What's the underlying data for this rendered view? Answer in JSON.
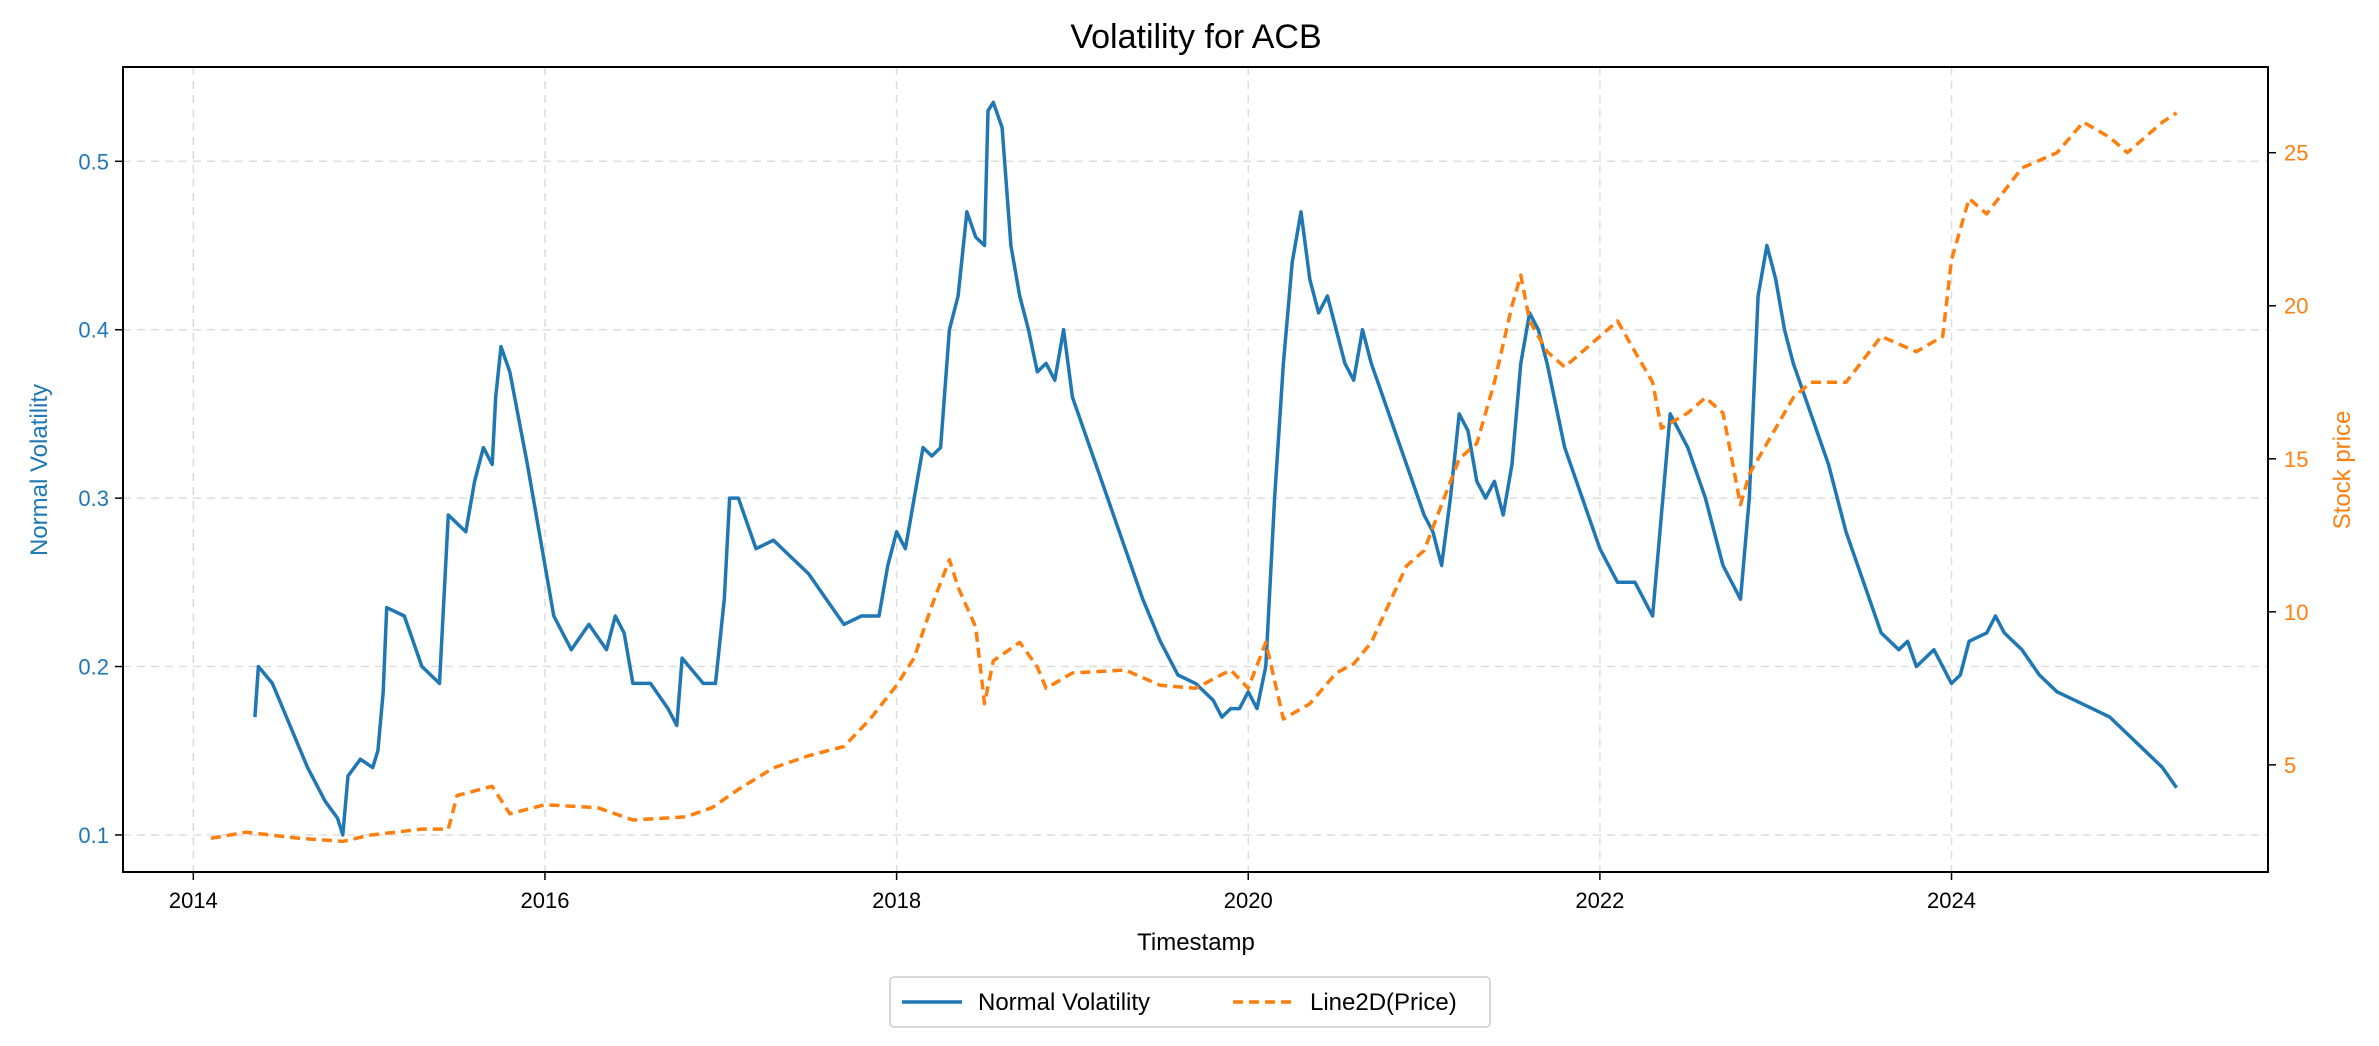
{
  "chart_data": {
    "type": "line",
    "title": "Volatility for ACB",
    "xlabel": "Timestamp",
    "ylabel_left": "Normal Volatility",
    "ylabel_right": "Stock price",
    "x_ticks": [
      "2014",
      "2016",
      "2018",
      "2020",
      "2022",
      "2024"
    ],
    "y_left_ticks": [
      "0.1",
      "0.2",
      "0.3",
      "0.4",
      "0.5"
    ],
    "y_right_ticks": [
      "5",
      "10",
      "15",
      "20",
      "25"
    ],
    "xlim": [
      2013.6,
      2025.8
    ],
    "ylim_left": [
      0.078,
      0.556
    ],
    "ylim_right": [
      1.5,
      27.8
    ],
    "grid": true,
    "legend_position": "bottom-center",
    "colors": {
      "volatility": "#1f77b4",
      "price": "#ff7f0e"
    },
    "series": [
      {
        "name": "Normal Volatility",
        "axis": "left",
        "style": "solid",
        "points": [
          [
            2014.35,
            0.17
          ],
          [
            2014.37,
            0.2
          ],
          [
            2014.45,
            0.19
          ],
          [
            2014.55,
            0.165
          ],
          [
            2014.65,
            0.14
          ],
          [
            2014.75,
            0.12
          ],
          [
            2014.82,
            0.11
          ],
          [
            2014.85,
            0.1
          ],
          [
            2014.88,
            0.135
          ],
          [
            2014.95,
            0.145
          ],
          [
            2015.02,
            0.14
          ],
          [
            2015.05,
            0.15
          ],
          [
            2015.08,
            0.185
          ],
          [
            2015.1,
            0.235
          ],
          [
            2015.2,
            0.23
          ],
          [
            2015.3,
            0.2
          ],
          [
            2015.4,
            0.19
          ],
          [
            2015.45,
            0.29
          ],
          [
            2015.55,
            0.28
          ],
          [
            2015.6,
            0.31
          ],
          [
            2015.65,
            0.33
          ],
          [
            2015.7,
            0.32
          ],
          [
            2015.72,
            0.36
          ],
          [
            2015.75,
            0.39
          ],
          [
            2015.8,
            0.375
          ],
          [
            2015.9,
            0.32
          ],
          [
            2016.0,
            0.26
          ],
          [
            2016.05,
            0.23
          ],
          [
            2016.15,
            0.21
          ],
          [
            2016.25,
            0.225
          ],
          [
            2016.35,
            0.21
          ],
          [
            2016.4,
            0.23
          ],
          [
            2016.45,
            0.22
          ],
          [
            2016.5,
            0.19
          ],
          [
            2016.6,
            0.19
          ],
          [
            2016.7,
            0.175
          ],
          [
            2016.75,
            0.165
          ],
          [
            2016.78,
            0.205
          ],
          [
            2016.9,
            0.19
          ],
          [
            2016.97,
            0.19
          ],
          [
            2017.02,
            0.24
          ],
          [
            2017.05,
            0.3
          ],
          [
            2017.1,
            0.3
          ],
          [
            2017.2,
            0.27
          ],
          [
            2017.3,
            0.275
          ],
          [
            2017.4,
            0.265
          ],
          [
            2017.5,
            0.255
          ],
          [
            2017.6,
            0.24
          ],
          [
            2017.7,
            0.225
          ],
          [
            2017.8,
            0.23
          ],
          [
            2017.9,
            0.23
          ],
          [
            2017.95,
            0.26
          ],
          [
            2018.0,
            0.28
          ],
          [
            2018.05,
            0.27
          ],
          [
            2018.1,
            0.3
          ],
          [
            2018.15,
            0.33
          ],
          [
            2018.2,
            0.325
          ],
          [
            2018.25,
            0.33
          ],
          [
            2018.3,
            0.4
          ],
          [
            2018.35,
            0.42
          ],
          [
            2018.4,
            0.47
          ],
          [
            2018.45,
            0.455
          ],
          [
            2018.5,
            0.45
          ],
          [
            2018.52,
            0.53
          ],
          [
            2018.55,
            0.535
          ],
          [
            2018.6,
            0.52
          ],
          [
            2018.65,
            0.45
          ],
          [
            2018.7,
            0.42
          ],
          [
            2018.75,
            0.4
          ],
          [
            2018.8,
            0.375
          ],
          [
            2018.85,
            0.38
          ],
          [
            2018.9,
            0.37
          ],
          [
            2018.95,
            0.4
          ],
          [
            2019.0,
            0.36
          ],
          [
            2019.1,
            0.33
          ],
          [
            2019.2,
            0.3
          ],
          [
            2019.3,
            0.27
          ],
          [
            2019.4,
            0.24
          ],
          [
            2019.5,
            0.215
          ],
          [
            2019.6,
            0.195
          ],
          [
            2019.7,
            0.19
          ],
          [
            2019.8,
            0.18
          ],
          [
            2019.85,
            0.17
          ],
          [
            2019.9,
            0.175
          ],
          [
            2019.95,
            0.175
          ],
          [
            2020.0,
            0.185
          ],
          [
            2020.05,
            0.175
          ],
          [
            2020.1,
            0.2
          ],
          [
            2020.15,
            0.3
          ],
          [
            2020.2,
            0.38
          ],
          [
            2020.25,
            0.44
          ],
          [
            2020.3,
            0.47
          ],
          [
            2020.35,
            0.43
          ],
          [
            2020.4,
            0.41
          ],
          [
            2020.45,
            0.42
          ],
          [
            2020.5,
            0.4
          ],
          [
            2020.55,
            0.38
          ],
          [
            2020.6,
            0.37
          ],
          [
            2020.65,
            0.4
          ],
          [
            2020.7,
            0.38
          ],
          [
            2020.8,
            0.35
          ],
          [
            2020.9,
            0.32
          ],
          [
            2021.0,
            0.29
          ],
          [
            2021.05,
            0.28
          ],
          [
            2021.1,
            0.26
          ],
          [
            2021.15,
            0.3
          ],
          [
            2021.2,
            0.35
          ],
          [
            2021.25,
            0.34
          ],
          [
            2021.3,
            0.31
          ],
          [
            2021.35,
            0.3
          ],
          [
            2021.4,
            0.31
          ],
          [
            2021.45,
            0.29
          ],
          [
            2021.5,
            0.32
          ],
          [
            2021.55,
            0.38
          ],
          [
            2021.6,
            0.41
          ],
          [
            2021.65,
            0.4
          ],
          [
            2021.7,
            0.38
          ],
          [
            2021.8,
            0.33
          ],
          [
            2021.9,
            0.3
          ],
          [
            2022.0,
            0.27
          ],
          [
            2022.1,
            0.25
          ],
          [
            2022.2,
            0.25
          ],
          [
            2022.3,
            0.23
          ],
          [
            2022.35,
            0.29
          ],
          [
            2022.4,
            0.35
          ],
          [
            2022.5,
            0.33
          ],
          [
            2022.6,
            0.3
          ],
          [
            2022.7,
            0.26
          ],
          [
            2022.8,
            0.24
          ],
          [
            2022.85,
            0.3
          ],
          [
            2022.9,
            0.42
          ],
          [
            2022.95,
            0.45
          ],
          [
            2023.0,
            0.43
          ],
          [
            2023.05,
            0.4
          ],
          [
            2023.1,
            0.38
          ],
          [
            2023.2,
            0.35
          ],
          [
            2023.3,
            0.32
          ],
          [
            2023.4,
            0.28
          ],
          [
            2023.5,
            0.25
          ],
          [
            2023.6,
            0.22
          ],
          [
            2023.7,
            0.21
          ],
          [
            2023.75,
            0.215
          ],
          [
            2023.8,
            0.2
          ],
          [
            2023.9,
            0.21
          ],
          [
            2024.0,
            0.19
          ],
          [
            2024.05,
            0.195
          ],
          [
            2024.1,
            0.215
          ],
          [
            2024.2,
            0.22
          ],
          [
            2024.25,
            0.23
          ],
          [
            2024.3,
            0.22
          ],
          [
            2024.4,
            0.21
          ],
          [
            2024.5,
            0.195
          ],
          [
            2024.6,
            0.185
          ],
          [
            2024.7,
            0.18
          ],
          [
            2024.8,
            0.175
          ],
          [
            2024.9,
            0.17
          ],
          [
            2025.0,
            0.16
          ],
          [
            2025.1,
            0.15
          ],
          [
            2025.2,
            0.14
          ],
          [
            2025.28,
            0.128
          ]
        ]
      },
      {
        "name": "Line2D(Price)",
        "axis": "right",
        "style": "dashed",
        "points": [
          [
            2014.1,
            2.6
          ],
          [
            2014.3,
            2.8
          ],
          [
            2014.6,
            2.6
          ],
          [
            2014.85,
            2.5
          ],
          [
            2015.0,
            2.7
          ],
          [
            2015.3,
            2.9
          ],
          [
            2015.45,
            2.9
          ],
          [
            2015.5,
            4.0
          ],
          [
            2015.7,
            4.3
          ],
          [
            2015.8,
            3.4
          ],
          [
            2016.0,
            3.7
          ],
          [
            2016.3,
            3.6
          ],
          [
            2016.5,
            3.2
          ],
          [
            2016.8,
            3.3
          ],
          [
            2016.95,
            3.6
          ],
          [
            2017.1,
            4.2
          ],
          [
            2017.3,
            4.9
          ],
          [
            2017.5,
            5.3
          ],
          [
            2017.7,
            5.6
          ],
          [
            2017.85,
            6.5
          ],
          [
            2018.0,
            7.6
          ],
          [
            2018.1,
            8.5
          ],
          [
            2018.2,
            10.2
          ],
          [
            2018.3,
            11.7
          ],
          [
            2018.35,
            10.8
          ],
          [
            2018.45,
            9.5
          ],
          [
            2018.5,
            7.0
          ],
          [
            2018.55,
            8.4
          ],
          [
            2018.7,
            9.0
          ],
          [
            2018.8,
            8.2
          ],
          [
            2018.85,
            7.5
          ],
          [
            2019.0,
            8.0
          ],
          [
            2019.3,
            8.1
          ],
          [
            2019.5,
            7.6
          ],
          [
            2019.7,
            7.5
          ],
          [
            2019.9,
            8.1
          ],
          [
            2020.0,
            7.5
          ],
          [
            2020.1,
            9.0
          ],
          [
            2020.2,
            6.5
          ],
          [
            2020.35,
            7.0
          ],
          [
            2020.5,
            8.0
          ],
          [
            2020.6,
            8.3
          ],
          [
            2020.7,
            9.0
          ],
          [
            2020.9,
            11.5
          ],
          [
            2021.0,
            12.0
          ],
          [
            2021.1,
            13.5
          ],
          [
            2021.2,
            15.0
          ],
          [
            2021.3,
            15.5
          ],
          [
            2021.4,
            17.5
          ],
          [
            2021.5,
            20.0
          ],
          [
            2021.55,
            21.0
          ],
          [
            2021.6,
            19.5
          ],
          [
            2021.7,
            18.5
          ],
          [
            2021.8,
            18.0
          ],
          [
            2021.9,
            18.5
          ],
          [
            2022.0,
            19.0
          ],
          [
            2022.1,
            19.5
          ],
          [
            2022.2,
            18.5
          ],
          [
            2022.3,
            17.5
          ],
          [
            2022.35,
            16.0
          ],
          [
            2022.5,
            16.5
          ],
          [
            2022.6,
            17.0
          ],
          [
            2022.7,
            16.5
          ],
          [
            2022.8,
            13.5
          ],
          [
            2022.85,
            14.5
          ],
          [
            2023.0,
            16.0
          ],
          [
            2023.1,
            17.0
          ],
          [
            2023.2,
            17.5
          ],
          [
            2023.4,
            17.5
          ],
          [
            2023.6,
            19.0
          ],
          [
            2023.8,
            18.5
          ],
          [
            2023.95,
            19.0
          ],
          [
            2024.0,
            21.5
          ],
          [
            2024.1,
            23.5
          ],
          [
            2024.2,
            23.0
          ],
          [
            2024.4,
            24.5
          ],
          [
            2024.6,
            25.0
          ],
          [
            2024.75,
            26.0
          ],
          [
            2024.9,
            25.5
          ],
          [
            2025.0,
            25.0
          ],
          [
            2025.2,
            26.0
          ],
          [
            2025.28,
            26.3
          ]
        ]
      }
    ]
  }
}
